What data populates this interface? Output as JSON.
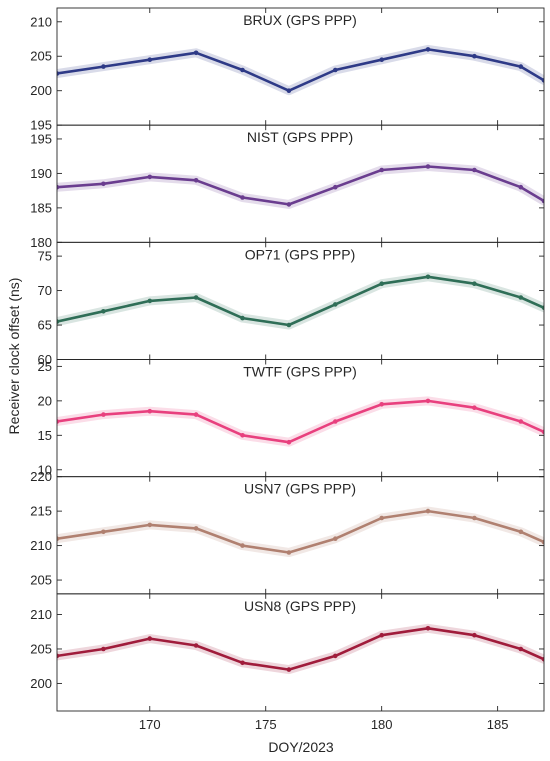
{
  "figure": {
    "ylabel": "Receiver clock offset (ns)",
    "xlabel": "DOY/2023"
  },
  "chart_data": [
    {
      "type": "scatter",
      "title": "BRUX (GPS PPP)",
      "color": "#2e3a87",
      "xlim": [
        166,
        187
      ],
      "ylim": [
        195,
        212
      ],
      "xticks": [
        170,
        175,
        180,
        185
      ],
      "yticks": [
        195,
        200,
        205,
        210
      ],
      "grid": false,
      "series": [
        {
          "x": [
            166,
            168,
            170,
            172,
            174,
            176,
            178,
            180,
            182,
            184,
            186,
            187
          ],
          "y": [
            202.5,
            203.5,
            204.5,
            205.5,
            203.0,
            200.0,
            203.0,
            204.5,
            206.0,
            205.0,
            203.5,
            201.5
          ]
        }
      ]
    },
    {
      "type": "scatter",
      "title": "NIST (GPS PPP)",
      "color": "#6a3d8f",
      "xlim": [
        166,
        187
      ],
      "ylim": [
        180,
        197
      ],
      "xticks": [
        170,
        175,
        180,
        185
      ],
      "yticks": [
        180,
        185,
        190,
        195
      ],
      "grid": false,
      "series": [
        {
          "x": [
            166,
            168,
            170,
            172,
            174,
            176,
            178,
            180,
            182,
            184,
            186,
            187
          ],
          "y": [
            188.0,
            188.5,
            189.5,
            189.0,
            186.5,
            185.5,
            188.0,
            190.5,
            191.0,
            190.5,
            188.0,
            186.0
          ]
        }
      ]
    },
    {
      "type": "scatter",
      "title": "OP71 (GPS PPP)",
      "color": "#2f6e57",
      "xlim": [
        166,
        187
      ],
      "ylim": [
        60,
        77
      ],
      "xticks": [
        170,
        175,
        180,
        185
      ],
      "yticks": [
        60,
        65,
        70,
        75
      ],
      "grid": false,
      "series": [
        {
          "x": [
            166,
            168,
            170,
            172,
            174,
            176,
            178,
            180,
            182,
            184,
            186,
            187
          ],
          "y": [
            65.5,
            67.0,
            68.5,
            69.0,
            66.0,
            65.0,
            68.0,
            71.0,
            72.0,
            71.0,
            69.0,
            67.5
          ]
        }
      ]
    },
    {
      "type": "scatter",
      "title": "TWTF (GPS PPP)",
      "color": "#e8407e",
      "xlim": [
        166,
        187
      ],
      "ylim": [
        9,
        26
      ],
      "xticks": [
        170,
        175,
        180,
        185
      ],
      "yticks": [
        10,
        15,
        20,
        25
      ],
      "grid": false,
      "series": [
        {
          "x": [
            166,
            168,
            170,
            172,
            174,
            176,
            178,
            180,
            182,
            184,
            186,
            187
          ],
          "y": [
            17.0,
            18.0,
            18.5,
            18.0,
            15.0,
            14.0,
            17.0,
            19.5,
            20.0,
            19.0,
            17.0,
            15.5
          ]
        }
      ]
    },
    {
      "type": "scatter",
      "title": "USN7 (GPS PPP)",
      "color": "#b08070",
      "xlim": [
        166,
        187
      ],
      "ylim": [
        203,
        220
      ],
      "xticks": [
        170,
        175,
        180,
        185
      ],
      "yticks": [
        205,
        210,
        215,
        220
      ],
      "grid": false,
      "series": [
        {
          "x": [
            166,
            168,
            170,
            172,
            174,
            176,
            178,
            180,
            182,
            184,
            186,
            187
          ],
          "y": [
            211.0,
            212.0,
            213.0,
            212.5,
            210.0,
            209.0,
            211.0,
            214.0,
            215.0,
            214.0,
            212.0,
            210.5
          ]
        }
      ]
    },
    {
      "type": "scatter",
      "title": "USN8 (GPS PPP)",
      "color": "#a01c3b",
      "xlim": [
        166,
        187
      ],
      "ylim": [
        196,
        213
      ],
      "xticks": [
        170,
        175,
        180,
        185
      ],
      "yticks": [
        200,
        205,
        210
      ],
      "grid": false,
      "series": [
        {
          "x": [
            166,
            168,
            170,
            172,
            174,
            176,
            178,
            180,
            182,
            184,
            186,
            187
          ],
          "y": [
            204.0,
            205.0,
            206.5,
            205.5,
            203.0,
            202.0,
            204.0,
            207.0,
            208.0,
            207.0,
            205.0,
            203.5
          ]
        }
      ]
    }
  ]
}
